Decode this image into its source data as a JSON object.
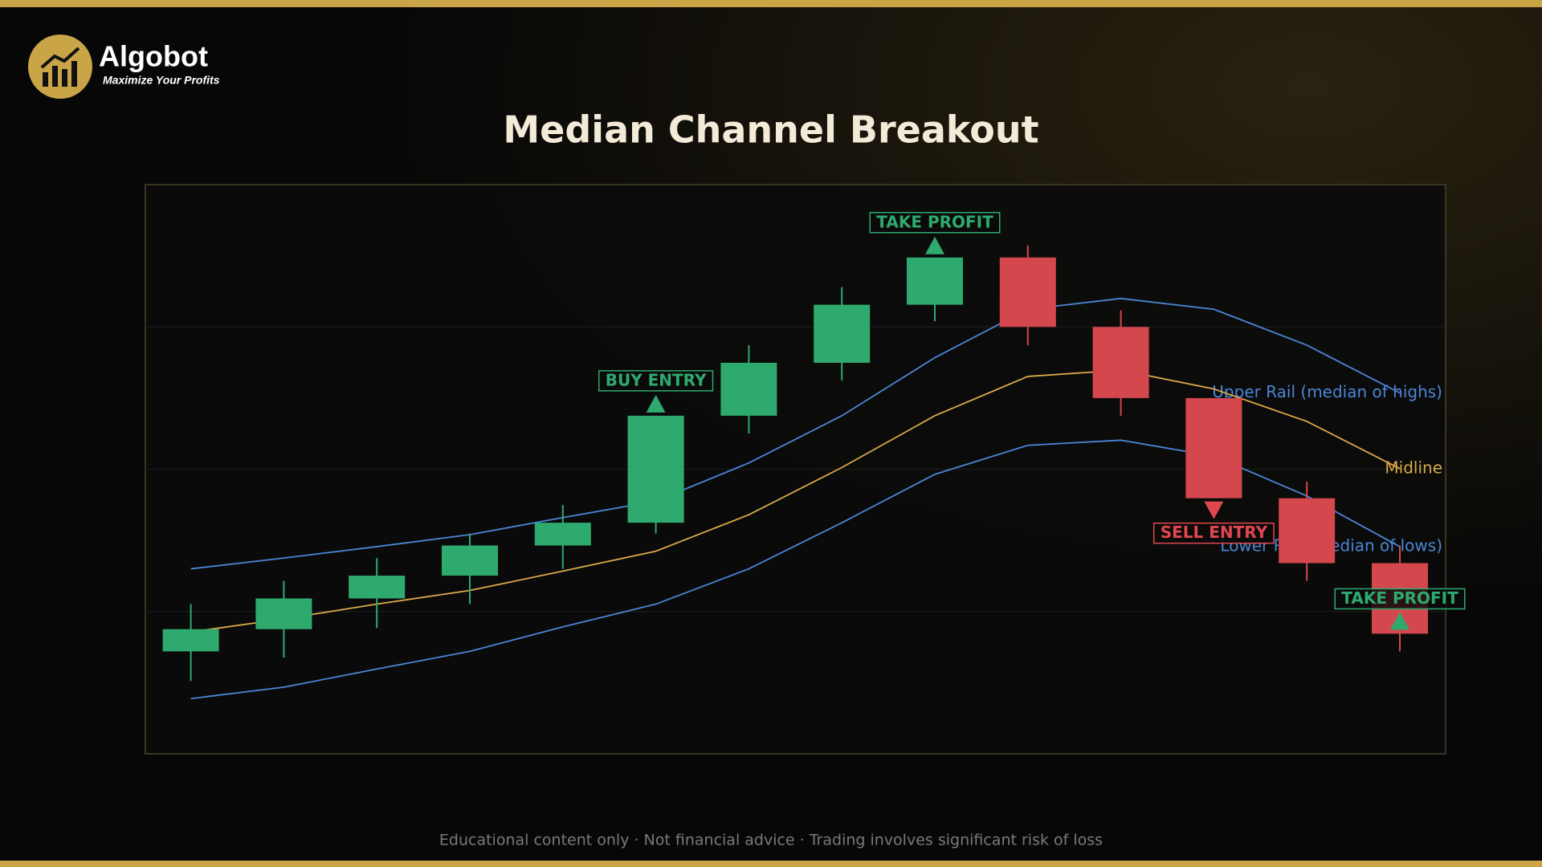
{
  "header": {
    "brand": "Algobot",
    "tagline": "Maximize Your Profits"
  },
  "chart_data": {
    "type": "candlestick",
    "title": "Median Channel Breakout",
    "categories": [
      null,
      null,
      null,
      null,
      null,
      null,
      null,
      null,
      null,
      null,
      null,
      null,
      null,
      null
    ],
    "open": [
      18.0,
      21.9,
      27.3,
      31.3,
      36.6,
      40.6,
      59.4,
      68.7,
      78.9,
      87.2,
      75.0,
      62.5,
      44.9,
      33.5
    ],
    "high": [
      26.3,
      30.4,
      34.4,
      38.7,
      43.7,
      59.4,
      71.8,
      82.0,
      87.2,
      89.3,
      77.9,
      62.5,
      47.8,
      36.6
    ],
    "low": [
      12.8,
      16.9,
      22.1,
      26.3,
      32.5,
      38.7,
      56.3,
      65.6,
      76.0,
      71.8,
      59.4,
      44.9,
      30.4,
      18.0
    ],
    "close": [
      21.9,
      27.3,
      31.3,
      36.6,
      40.6,
      59.4,
      68.7,
      78.9,
      87.2,
      75.0,
      62.5,
      44.9,
      33.5,
      21.1
    ],
    "up_color": "#2eaa6e",
    "down_color": "#d4474d",
    "ylim": [
      0,
      100
    ],
    "yticks": [
      25,
      50,
      75
    ],
    "grid": true,
    "series": [
      {
        "name": "Upper Rail (median of highs)",
        "color": "#4a86d6",
        "values": [
          32.5,
          34.4,
          36.4,
          38.5,
          41.5,
          44.4,
          51.1,
          59.4,
          69.6,
          78.1,
          80.0,
          78.1,
          71.8,
          63.4
        ]
      },
      {
        "name": "Midline",
        "color": "#d9a94a",
        "values": [
          21.4,
          23.7,
          26.3,
          28.7,
          32.1,
          35.6,
          42.0,
          50.3,
          59.4,
          66.3,
          67.4,
          64.1,
          58.4,
          50.1
        ]
      },
      {
        "name": "Lower Rail (median of lows)",
        "color": "#4a86d6",
        "values": [
          9.7,
          11.7,
          14.9,
          18.0,
          22.3,
          26.3,
          32.5,
          40.6,
          49.1,
          54.2,
          55.1,
          52.3,
          45.3,
          36.4
        ]
      }
    ],
    "annotations": [
      {
        "text": "BUY ENTRY",
        "index": 5,
        "position": "above",
        "color": "#2eaa6e"
      },
      {
        "text": "TAKE PROFIT",
        "index": 8,
        "position": "above",
        "color": "#2eaa6e"
      },
      {
        "text": "SELL ENTRY",
        "index": 11,
        "position": "below",
        "color": "#e0474f"
      },
      {
        "text": "TAKE PROFIT",
        "index": 13,
        "position": "center",
        "color": "#2eaa6e"
      }
    ]
  },
  "footer": {
    "text": "Educational content only  ·  Not financial advice  ·  Trading involves significant risk of loss"
  }
}
